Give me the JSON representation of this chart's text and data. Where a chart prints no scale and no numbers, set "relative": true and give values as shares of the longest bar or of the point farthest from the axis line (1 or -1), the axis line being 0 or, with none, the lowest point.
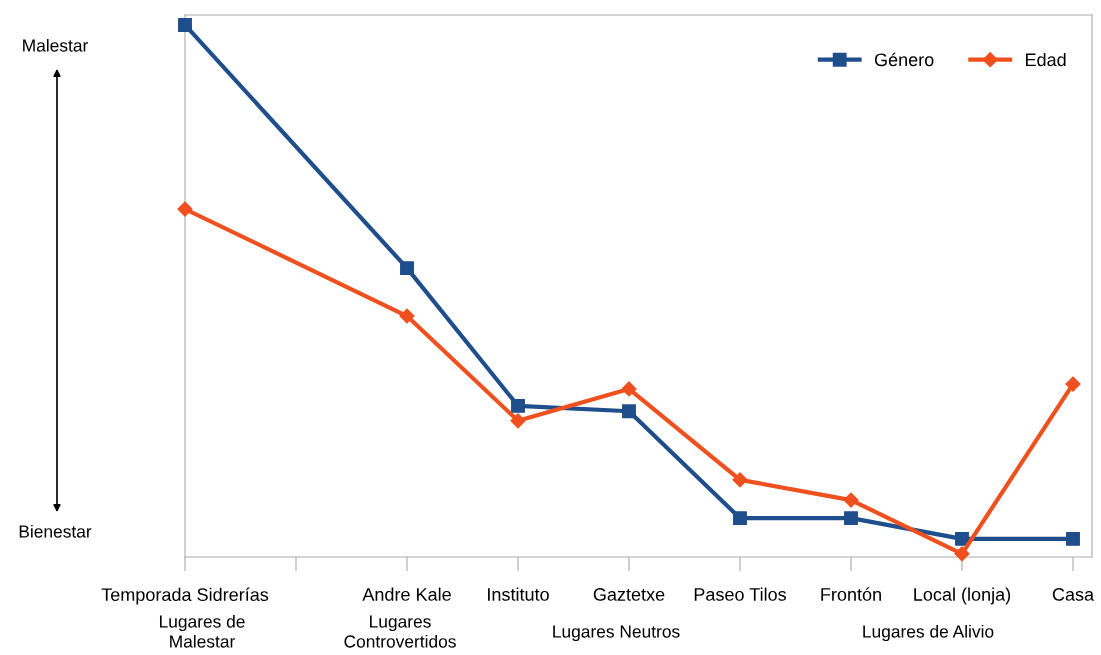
{
  "chart_data": {
    "type": "line",
    "relative": true,
    "categories": [
      "Temporada Sidrerías",
      null,
      "Andre Kale",
      "Instituto",
      "Gaztetxe",
      "Paseo Tilos",
      "Frontón",
      "Local (lonja)",
      "Casa"
    ],
    "series": [
      {
        "name": "Género",
        "color": "#1f4e8c",
        "marker": "square",
        "values": [
          1,
          null,
          0.543,
          0.284,
          0.274,
          0.073,
          0.073,
          0.034,
          0.034
        ]
      },
      {
        "name": "Edad",
        "color": "#f0501e",
        "marker": "diamond",
        "values": [
          0.654,
          null,
          0.453,
          0.256,
          0.316,
          0.145,
          0.107,
          0.006,
          0.325
        ]
      }
    ],
    "legend": "top right",
    "grid": false,
    "line_style": "solid",
    "annotations": [
      "Malestar",
      "Bienestar",
      "Lugares de\nMalestar",
      "Lugares\nControvertidos",
      "Lugares Neutros",
      "Lugares de Alivio"
    ]
  }
}
